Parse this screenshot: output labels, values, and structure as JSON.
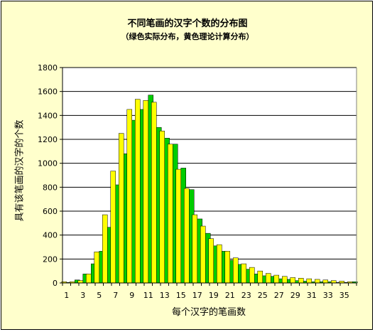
{
  "chart_data": {
    "type": "bar",
    "title": "不同笔画的汉字个数的分布图",
    "subtitle": "（绿色实际分布，黄色理论计算分布）",
    "xlabel": "每个汉字的笔画数",
    "ylabel": "具有该笔画的汉字的个数",
    "ylim": [
      0,
      1800
    ],
    "yticks": [
      "0",
      "200",
      "400",
      "600",
      "800",
      "1000",
      "1200",
      "1400",
      "1600",
      "1800"
    ],
    "xticks": [
      "1",
      "3",
      "5",
      "7",
      "9",
      "11",
      "13",
      "15",
      "17",
      "19",
      "21",
      "23",
      "25",
      "27",
      "29",
      "31",
      "33",
      "35"
    ],
    "grid": true,
    "legend": "none",
    "categories": [
      1,
      2,
      3,
      4,
      5,
      6,
      7,
      8,
      9,
      10,
      11,
      12,
      13,
      14,
      15,
      16,
      17,
      18,
      19,
      20,
      21,
      22,
      23,
      24,
      25,
      26,
      27,
      28,
      29,
      30,
      31,
      32,
      33,
      34,
      35,
      36
    ],
    "series": [
      {
        "color": "#ffff00",
        "values": [
          10,
          10,
          20,
          75,
          260,
          570,
          935,
          1250,
          1450,
          1535,
          1525,
          1510,
          1270,
          1160,
          950,
          790,
          570,
          475,
          370,
          320,
          265,
          210,
          160,
          130,
          100,
          80,
          65,
          55,
          45,
          40,
          35,
          30,
          25,
          20,
          15,
          10
        ]
      },
      {
        "color": "#00cc00",
        "values": [
          5,
          25,
          75,
          160,
          265,
          465,
          820,
          1080,
          1360,
          1450,
          1570,
          1300,
          1210,
          1160,
          960,
          780,
          535,
          415,
          310,
          265,
          190,
          155,
          115,
          75,
          60,
          55,
          35,
          30,
          20,
          15,
          10,
          10,
          10,
          5,
          5,
          10
        ]
      }
    ]
  }
}
